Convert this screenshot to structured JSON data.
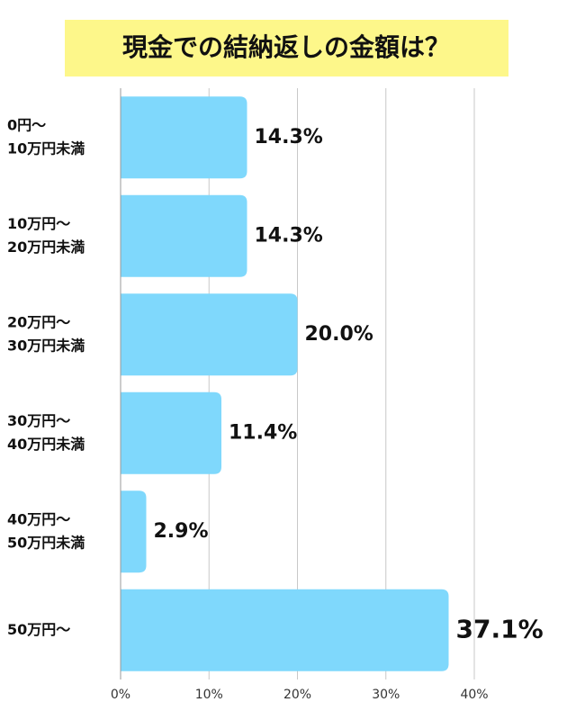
{
  "chart_data": {
    "type": "bar",
    "orientation": "horizontal",
    "title": "現金での結納返しの金額は？",
    "title_background": "#fdf78a",
    "categories": [
      [
        "0円～",
        "10万円未満"
      ],
      [
        "10万円～",
        "20万円未満"
      ],
      [
        "20万円～",
        "30万円未満"
      ],
      [
        "30万円～",
        "40万円未満"
      ],
      [
        "40万円～",
        "50万円未満"
      ],
      [
        "50万円～"
      ]
    ],
    "values": [
      14.3,
      14.3,
      20.0,
      11.4,
      2.9,
      37.1
    ],
    "value_labels": [
      "14.3%",
      "14.3%",
      "20.0%",
      "11.4%",
      "2.9%",
      "37.1%"
    ],
    "color": "#7fd8fc",
    "xlim": [
      0,
      40
    ],
    "xticks": [
      {
        "value": 0,
        "label": "0%"
      },
      {
        "value": 10,
        "label": "10%"
      },
      {
        "value": 20,
        "label": "20%"
      },
      {
        "value": 30,
        "label": "30%"
      },
      {
        "value": 40,
        "label": "40%"
      }
    ],
    "grid": true
  }
}
